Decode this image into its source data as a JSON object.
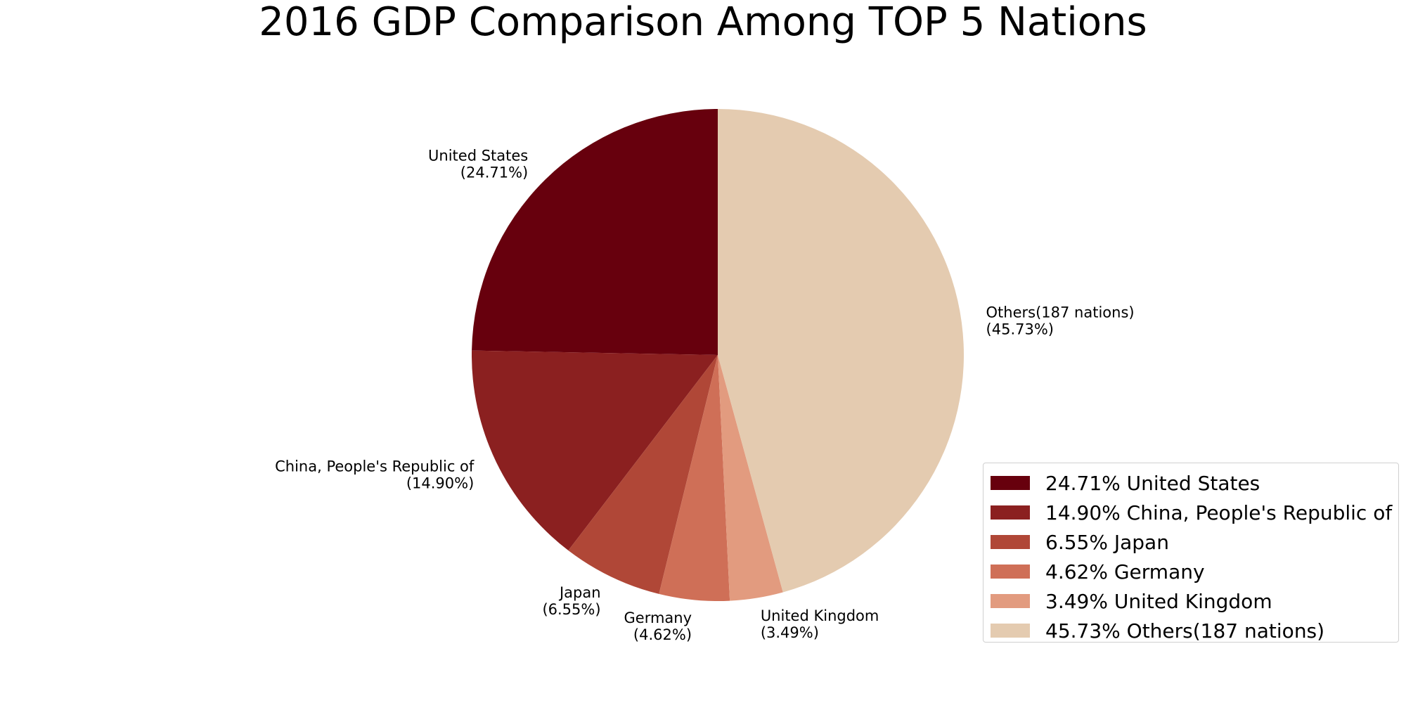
{
  "chart_data": {
    "type": "pie",
    "title": "2016 GDP Comparison Among TOP 5 Nations",
    "slices": [
      {
        "label": "United States",
        "value": 24.71,
        "pct_text": "(24.71%)",
        "legend": "24.71% United States",
        "color": "#67000d"
      },
      {
        "label": "China, People's Republic of",
        "value": 14.9,
        "pct_text": "(14.90%)",
        "legend": "14.90% China, People's Republic of",
        "color": "#8b2020"
      },
      {
        "label": "Japan",
        "value": 6.55,
        "pct_text": "(6.55%)",
        "legend": "6.55% Japan",
        "color": "#b04737"
      },
      {
        "label": "Germany",
        "value": 4.62,
        "pct_text": "(4.62%)",
        "legend": "4.62% Germany",
        "color": "#cf6f57"
      },
      {
        "label": "United Kingdom",
        "value": 3.49,
        "pct_text": "(3.49%)",
        "legend": "3.49% United Kingdom",
        "color": "#e29b7f"
      },
      {
        "label": "Others(187 nations)",
        "value": 45.73,
        "pct_text": "(45.73%)",
        "legend": "45.73% Others(187 nations)",
        "color": "#e4cbb0"
      }
    ],
    "start_angle_deg": 90,
    "direction": "counterclockwise",
    "legend_position": "lower-right"
  }
}
